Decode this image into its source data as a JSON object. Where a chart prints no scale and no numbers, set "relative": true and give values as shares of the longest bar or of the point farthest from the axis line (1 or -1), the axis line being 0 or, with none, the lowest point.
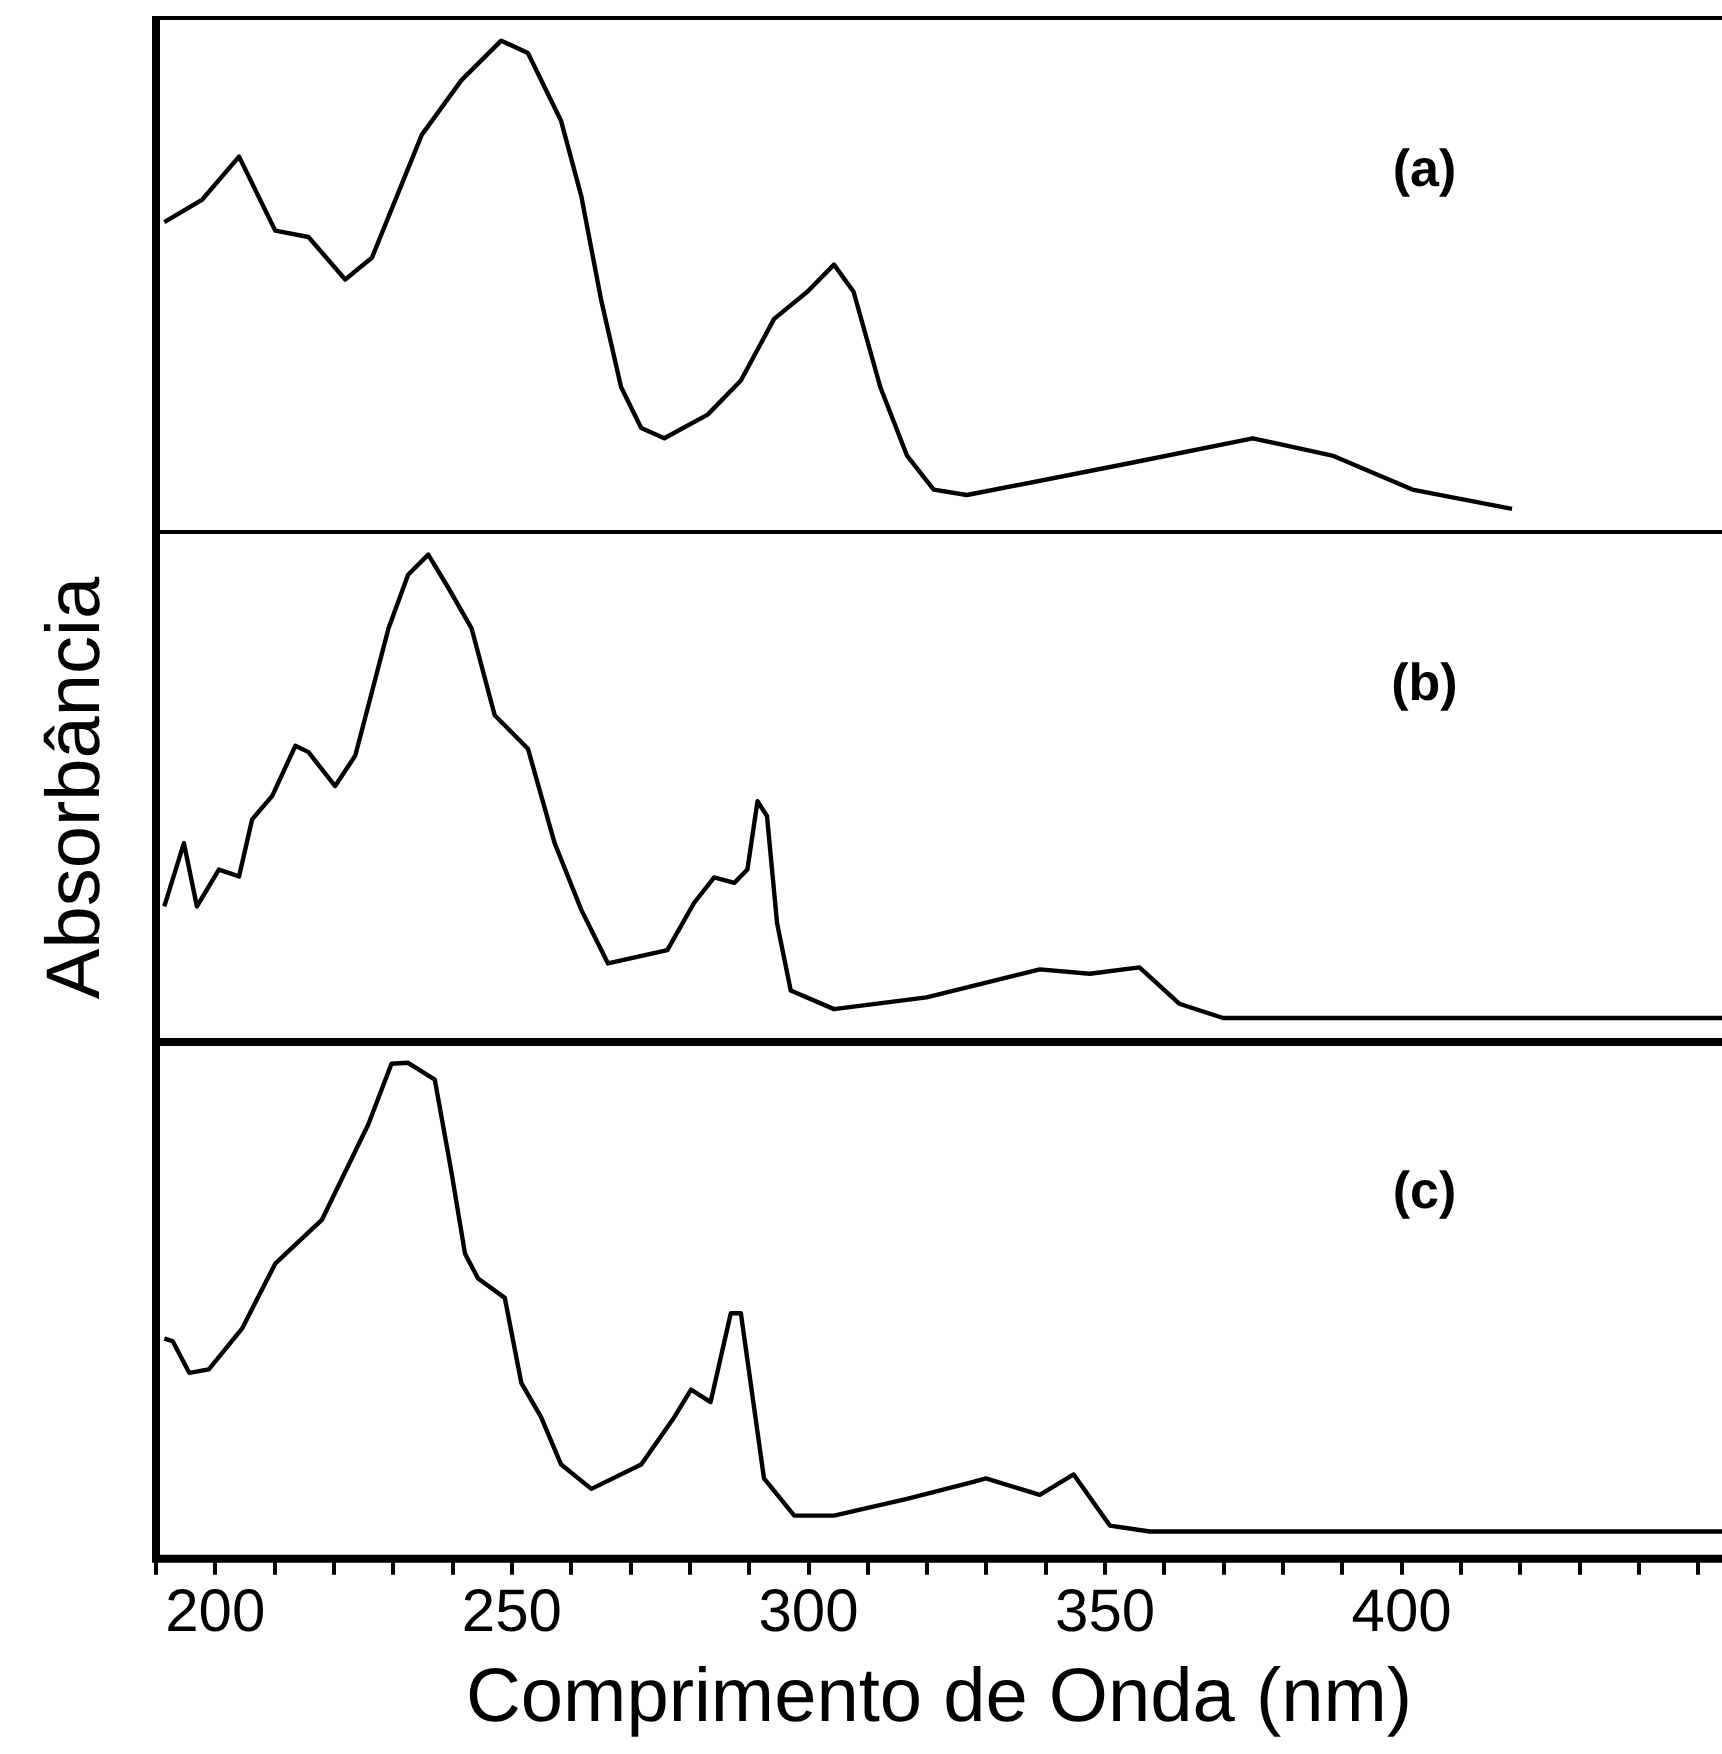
{
  "chart_data": [
    {
      "type": "line",
      "relative": true,
      "tick_labels": false,
      "xlim": [
        190,
        454
      ],
      "marker": "none",
      "annotations": [
        "(a)"
      ],
      "series": [
        {
          "color": "#000000",
          "x": [
            191.4,
            197.8,
            204.0,
            210.1,
            215.7,
            221.9,
            226.4,
            234.8,
            241.5,
            248.2,
            252.7,
            258.3,
            261.7,
            265.0,
            268.4,
            271.8,
            275.7,
            283.0,
            288.6,
            294.2,
            299.8,
            304.3,
            307.6,
            312.1,
            316.6,
            321.1,
            326.7,
            354.7,
            374.9,
            388.3,
            401.8,
            418.6
          ],
          "values": [
            0.632,
            0.678,
            0.765,
            0.615,
            0.602,
            0.516,
            0.56,
            0.809,
            0.92,
            1.0,
            0.975,
            0.837,
            0.685,
            0.477,
            0.298,
            0.215,
            0.194,
            0.242,
            0.311,
            0.436,
            0.491,
            0.546,
            0.491,
            0.298,
            0.159,
            0.09,
            0.079,
            0.145,
            0.194,
            0.159,
            0.09,
            0.051
          ]
        }
      ]
    },
    {
      "type": "line",
      "relative": true,
      "tick_labels": false,
      "xlim": [
        190,
        454
      ],
      "marker": "none",
      "ylabel": "Absorbância",
      "annotations": [
        "(b)"
      ],
      "series": [
        {
          "color": "#000000",
          "x": [
            191.4,
            194.7,
            196.9,
            200.6,
            204.0,
            206.2,
            209.6,
            213.5,
            215.7,
            220.2,
            223.6,
            229.2,
            232.5,
            235.9,
            239.3,
            243.2,
            247.1,
            252.7,
            257.2,
            261.7,
            266.2,
            276.2,
            280.7,
            284.1,
            287.5,
            289.7,
            291.4,
            293.0,
            294.7,
            297.0,
            304.3,
            319.9,
            339.0,
            347.4,
            355.8,
            362.5,
            369.9,
            454
          ],
          "values": [
            0.284,
            0.413,
            0.284,
            0.359,
            0.345,
            0.461,
            0.509,
            0.611,
            0.598,
            0.529,
            0.591,
            0.85,
            0.959,
            1.0,
            0.932,
            0.85,
            0.673,
            0.605,
            0.413,
            0.277,
            0.168,
            0.195,
            0.291,
            0.343,
            0.332,
            0.359,
            0.498,
            0.468,
            0.25,
            0.113,
            0.075,
            0.099,
            0.156,
            0.147,
            0.16,
            0.086,
            0.057,
            0.057
          ]
        }
      ]
    },
    {
      "type": "line",
      "relative": true,
      "tick_labels": "x",
      "xlim": [
        190,
        454
      ],
      "marker": "none",
      "xlabel": "Comprimento de Onda (nm)",
      "annotations": [
        "(c)"
      ],
      "xticks": [
        {
          "value": 190,
          "label": null
        },
        200,
        {
          "value": 210,
          "label": null
        },
        {
          "value": 220,
          "label": null
        },
        {
          "value": 230,
          "label": null
        },
        {
          "value": 240,
          "label": null
        },
        250,
        {
          "value": 260,
          "label": null
        },
        {
          "value": 270,
          "label": null
        },
        {
          "value": 280,
          "label": null
        },
        {
          "value": 290,
          "label": null
        },
        300,
        {
          "value": 310,
          "label": null
        },
        {
          "value": 320,
          "label": null
        },
        {
          "value": 330,
          "label": null
        },
        {
          "value": 340,
          "label": null
        },
        350,
        {
          "value": 360,
          "label": null
        },
        {
          "value": 370,
          "label": null
        },
        {
          "value": 380,
          "label": null
        },
        {
          "value": 390,
          "label": null
        },
        400,
        {
          "value": 410,
          "label": null
        },
        {
          "value": 420,
          "label": null
        },
        {
          "value": 430,
          "label": null
        },
        {
          "value": 440,
          "label": null
        },
        {
          "value": 450,
          "label": null
        }
      ],
      "series": [
        {
          "color": "#000000",
          "x": [
            191.4,
            192.8,
            195.6,
            198.9,
            204.5,
            210.1,
            218.0,
            225.8,
            229.7,
            232.5,
            237.0,
            239.8,
            242.1,
            244.3,
            248.8,
            251.6,
            254.9,
            258.3,
            263.4,
            271.8,
            277.4,
            280.2,
            283.5,
            286.9,
            288.6,
            292.5,
            297.6,
            304.3,
            316.6,
            327.8,
            329.9,
            339.0,
            344.7,
            350.8,
            357.5,
            454
          ],
          "values": [
            0.444,
            0.439,
            0.375,
            0.382,
            0.464,
            0.595,
            0.684,
            0.876,
            0.998,
            1.0,
            0.966,
            0.78,
            0.615,
            0.565,
            0.526,
            0.354,
            0.286,
            0.19,
            0.141,
            0.19,
            0.286,
            0.341,
            0.316,
            0.495,
            0.495,
            0.162,
            0.087,
            0.087,
            0.121,
            0.155,
            0.162,
            0.129,
            0.17,
            0.067,
            0.055,
            0.055
          ]
        }
      ]
    }
  ]
}
